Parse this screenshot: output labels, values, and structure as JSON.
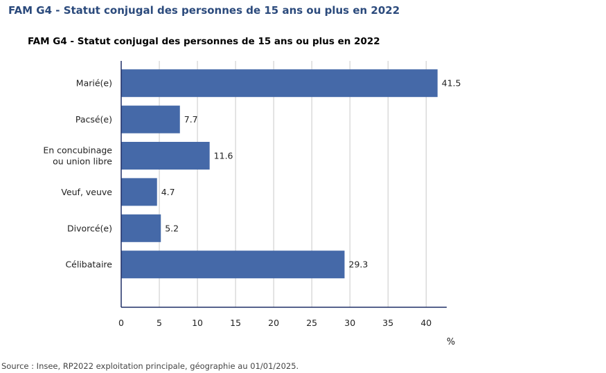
{
  "page_title": "FAM G4 - Statut conjugal des personnes de 15 ans ou plus en 2022",
  "source": "Source : Insee, RP2022 exploitation principale, géographie au 01/01/2025.",
  "colors": {
    "bar": "#4569a8",
    "grid": "#c8c8c8",
    "axis": "#1f2f66",
    "title": "#2b4a7c"
  },
  "chart_data": {
    "type": "bar",
    "orientation": "horizontal",
    "title": "FAM G4 - Statut conjugal des personnes de 15 ans ou plus en 2022",
    "categories": [
      [
        "Marié(e)"
      ],
      [
        "Pacsé(e)"
      ],
      [
        "En concubinage",
        "ou union libre"
      ],
      [
        "Veuf, veuve"
      ],
      [
        "Divorcé(e)"
      ],
      [
        "Célibataire"
      ]
    ],
    "values": [
      41.5,
      7.7,
      11.6,
      4.7,
      5.2,
      29.3
    ],
    "value_labels": [
      "41.5",
      "7.7",
      "11.6",
      "4.7",
      "5.2",
      "29.3"
    ],
    "x_ticks": [
      0,
      5,
      10,
      15,
      20,
      25,
      30,
      35,
      40
    ],
    "xlim": [
      0,
      42.7
    ],
    "xlabel": "%",
    "ylabel": "",
    "grid": true,
    "legend": "none"
  }
}
